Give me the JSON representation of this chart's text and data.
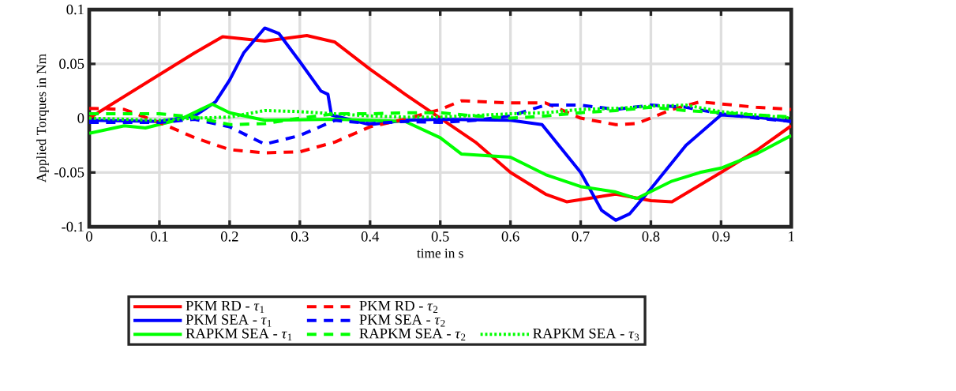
{
  "chart_data": {
    "type": "line",
    "xlabel": "time in s",
    "ylabel": "Applied Torques in Nm",
    "xlim": [
      0,
      1
    ],
    "ylim": [
      -0.1,
      0.1
    ],
    "xticks": [
      0,
      0.1,
      0.2,
      0.3,
      0.4,
      0.5,
      0.6,
      0.7,
      0.8,
      0.9,
      1
    ],
    "yticks": [
      -0.1,
      -0.05,
      0,
      0.05,
      0.1
    ],
    "grid": true,
    "legend": "bottom",
    "marker": "none",
    "series": [
      {
        "name": "PKM RD - *τ*$_{1}$",
        "color": "#ff0000",
        "line_style": "solid",
        "x": [
          0,
          0.1,
          0.15,
          0.19,
          0.25,
          0.31,
          0.35,
          0.4,
          0.45,
          0.5,
          0.55,
          0.6,
          0.65,
          0.68,
          0.72,
          0.75,
          0.8,
          0.83,
          0.9,
          0.95,
          1
        ],
        "values": [
          0,
          0.04,
          0.06,
          0.075,
          0.071,
          0.076,
          0.07,
          0.045,
          0.022,
          0.0,
          -0.022,
          -0.05,
          -0.07,
          -0.077,
          -0.073,
          -0.07,
          -0.076,
          -0.077,
          -0.05,
          -0.03,
          -0.007
        ]
      },
      {
        "name": "PKM SEA - *τ*$_{1}$",
        "color": "#0000ff",
        "line_style": "solid",
        "x": [
          0,
          0.1,
          0.15,
          0.18,
          0.2,
          0.22,
          0.25,
          0.27,
          0.3,
          0.33,
          0.34,
          0.345,
          0.4,
          0.45,
          0.5,
          0.6,
          0.645,
          0.7,
          0.73,
          0.75,
          0.77,
          0.8,
          0.85,
          0.9,
          0.95,
          1
        ],
        "values": [
          -0.002,
          -0.003,
          0.002,
          0.015,
          0.035,
          0.06,
          0.083,
          0.078,
          0.052,
          0.025,
          0.022,
          0.003,
          -0.006,
          -0.002,
          -0.001,
          -0.002,
          -0.006,
          -0.05,
          -0.085,
          -0.094,
          -0.088,
          -0.065,
          -0.025,
          0.003,
          0.001,
          -0.003
        ]
      },
      {
        "name": "RAPKM SEA - *τ*$_{1}$",
        "color": "#00ff00",
        "line_style": "solid",
        "x": [
          0,
          0.05,
          0.08,
          0.13,
          0.175,
          0.2,
          0.25,
          0.35,
          0.45,
          0.5,
          0.53,
          0.6,
          0.65,
          0.7,
          0.75,
          0.78,
          0.83,
          0.87,
          0.9,
          0.95,
          1
        ],
        "values": [
          -0.014,
          -0.007,
          -0.009,
          -0.001,
          0.013,
          0.005,
          -0.002,
          -0.001,
          -0.003,
          -0.018,
          -0.033,
          -0.036,
          -0.052,
          -0.063,
          -0.068,
          -0.074,
          -0.058,
          -0.05,
          -0.046,
          -0.033,
          -0.016
        ]
      },
      {
        "name": "PKM RD - *τ*$_{2}$",
        "color": "#ff0000",
        "line_style": "dashed",
        "x": [
          0,
          0.05,
          0.1,
          0.15,
          0.2,
          0.25,
          0.3,
          0.35,
          0.4,
          0.45,
          0.5,
          0.53,
          0.6,
          0.65,
          0.7,
          0.75,
          0.78,
          0.83,
          0.87,
          0.95,
          1
        ],
        "values": [
          0.009,
          0.008,
          -0.004,
          -0.018,
          -0.029,
          -0.032,
          -0.031,
          -0.022,
          -0.008,
          -0.001,
          0.008,
          0.016,
          0.014,
          0.014,
          0.0,
          -0.006,
          -0.005,
          0.008,
          0.015,
          0.01,
          0.008
        ]
      },
      {
        "name": "PKM SEA - *τ*$_{2}$",
        "color": "#0000ff",
        "line_style": "dashed",
        "x": [
          0,
          0.1,
          0.15,
          0.2,
          0.25,
          0.3,
          0.35,
          0.4,
          0.45,
          0.5,
          0.55,
          0.6,
          0.65,
          0.7,
          0.75,
          0.8,
          0.85,
          0.9,
          0.95,
          1
        ],
        "values": [
          -0.004,
          -0.004,
          -0.001,
          -0.008,
          -0.024,
          -0.016,
          -0.002,
          -0.005,
          -0.003,
          -0.004,
          -0.002,
          0.002,
          0.012,
          0.012,
          0.008,
          0.012,
          0.01,
          0.004,
          0.0,
          -0.003
        ]
      },
      {
        "name": "RAPKM SEA - *τ*$_{2}$",
        "color": "#00ff00",
        "line_style": "dashed",
        "x": [
          0,
          0.1,
          0.15,
          0.2,
          0.25,
          0.3,
          0.35,
          0.4,
          0.45,
          0.5,
          0.55,
          0.6,
          0.65,
          0.7,
          0.75,
          0.8,
          0.85,
          0.9,
          0.95,
          1
        ],
        "values": [
          0.004,
          0.004,
          0.001,
          -0.006,
          -0.005,
          0.0,
          0.004,
          0.004,
          0.005,
          0.005,
          0.002,
          0.0,
          0.002,
          0.005,
          0.007,
          0.01,
          0.007,
          0.005,
          0.003,
          0.001
        ]
      },
      {
        "name": "RAPKM SEA - *τ*$_{3}$",
        "color": "#00ff00",
        "line_style": "dotted",
        "x": [
          0,
          0.1,
          0.15,
          0.2,
          0.25,
          0.3,
          0.35,
          0.4,
          0.45,
          0.5,
          0.6,
          0.65,
          0.7,
          0.75,
          0.8,
          0.85,
          0.9,
          0.95,
          1
        ],
        "values": [
          0.0,
          -0.002,
          0.0,
          0.001,
          0.007,
          0.006,
          0.004,
          0.002,
          0.001,
          0.001,
          0.004,
          0.005,
          0.008,
          0.009,
          0.011,
          0.012,
          0.006,
          0.003,
          0.0
        ]
      }
    ]
  }
}
